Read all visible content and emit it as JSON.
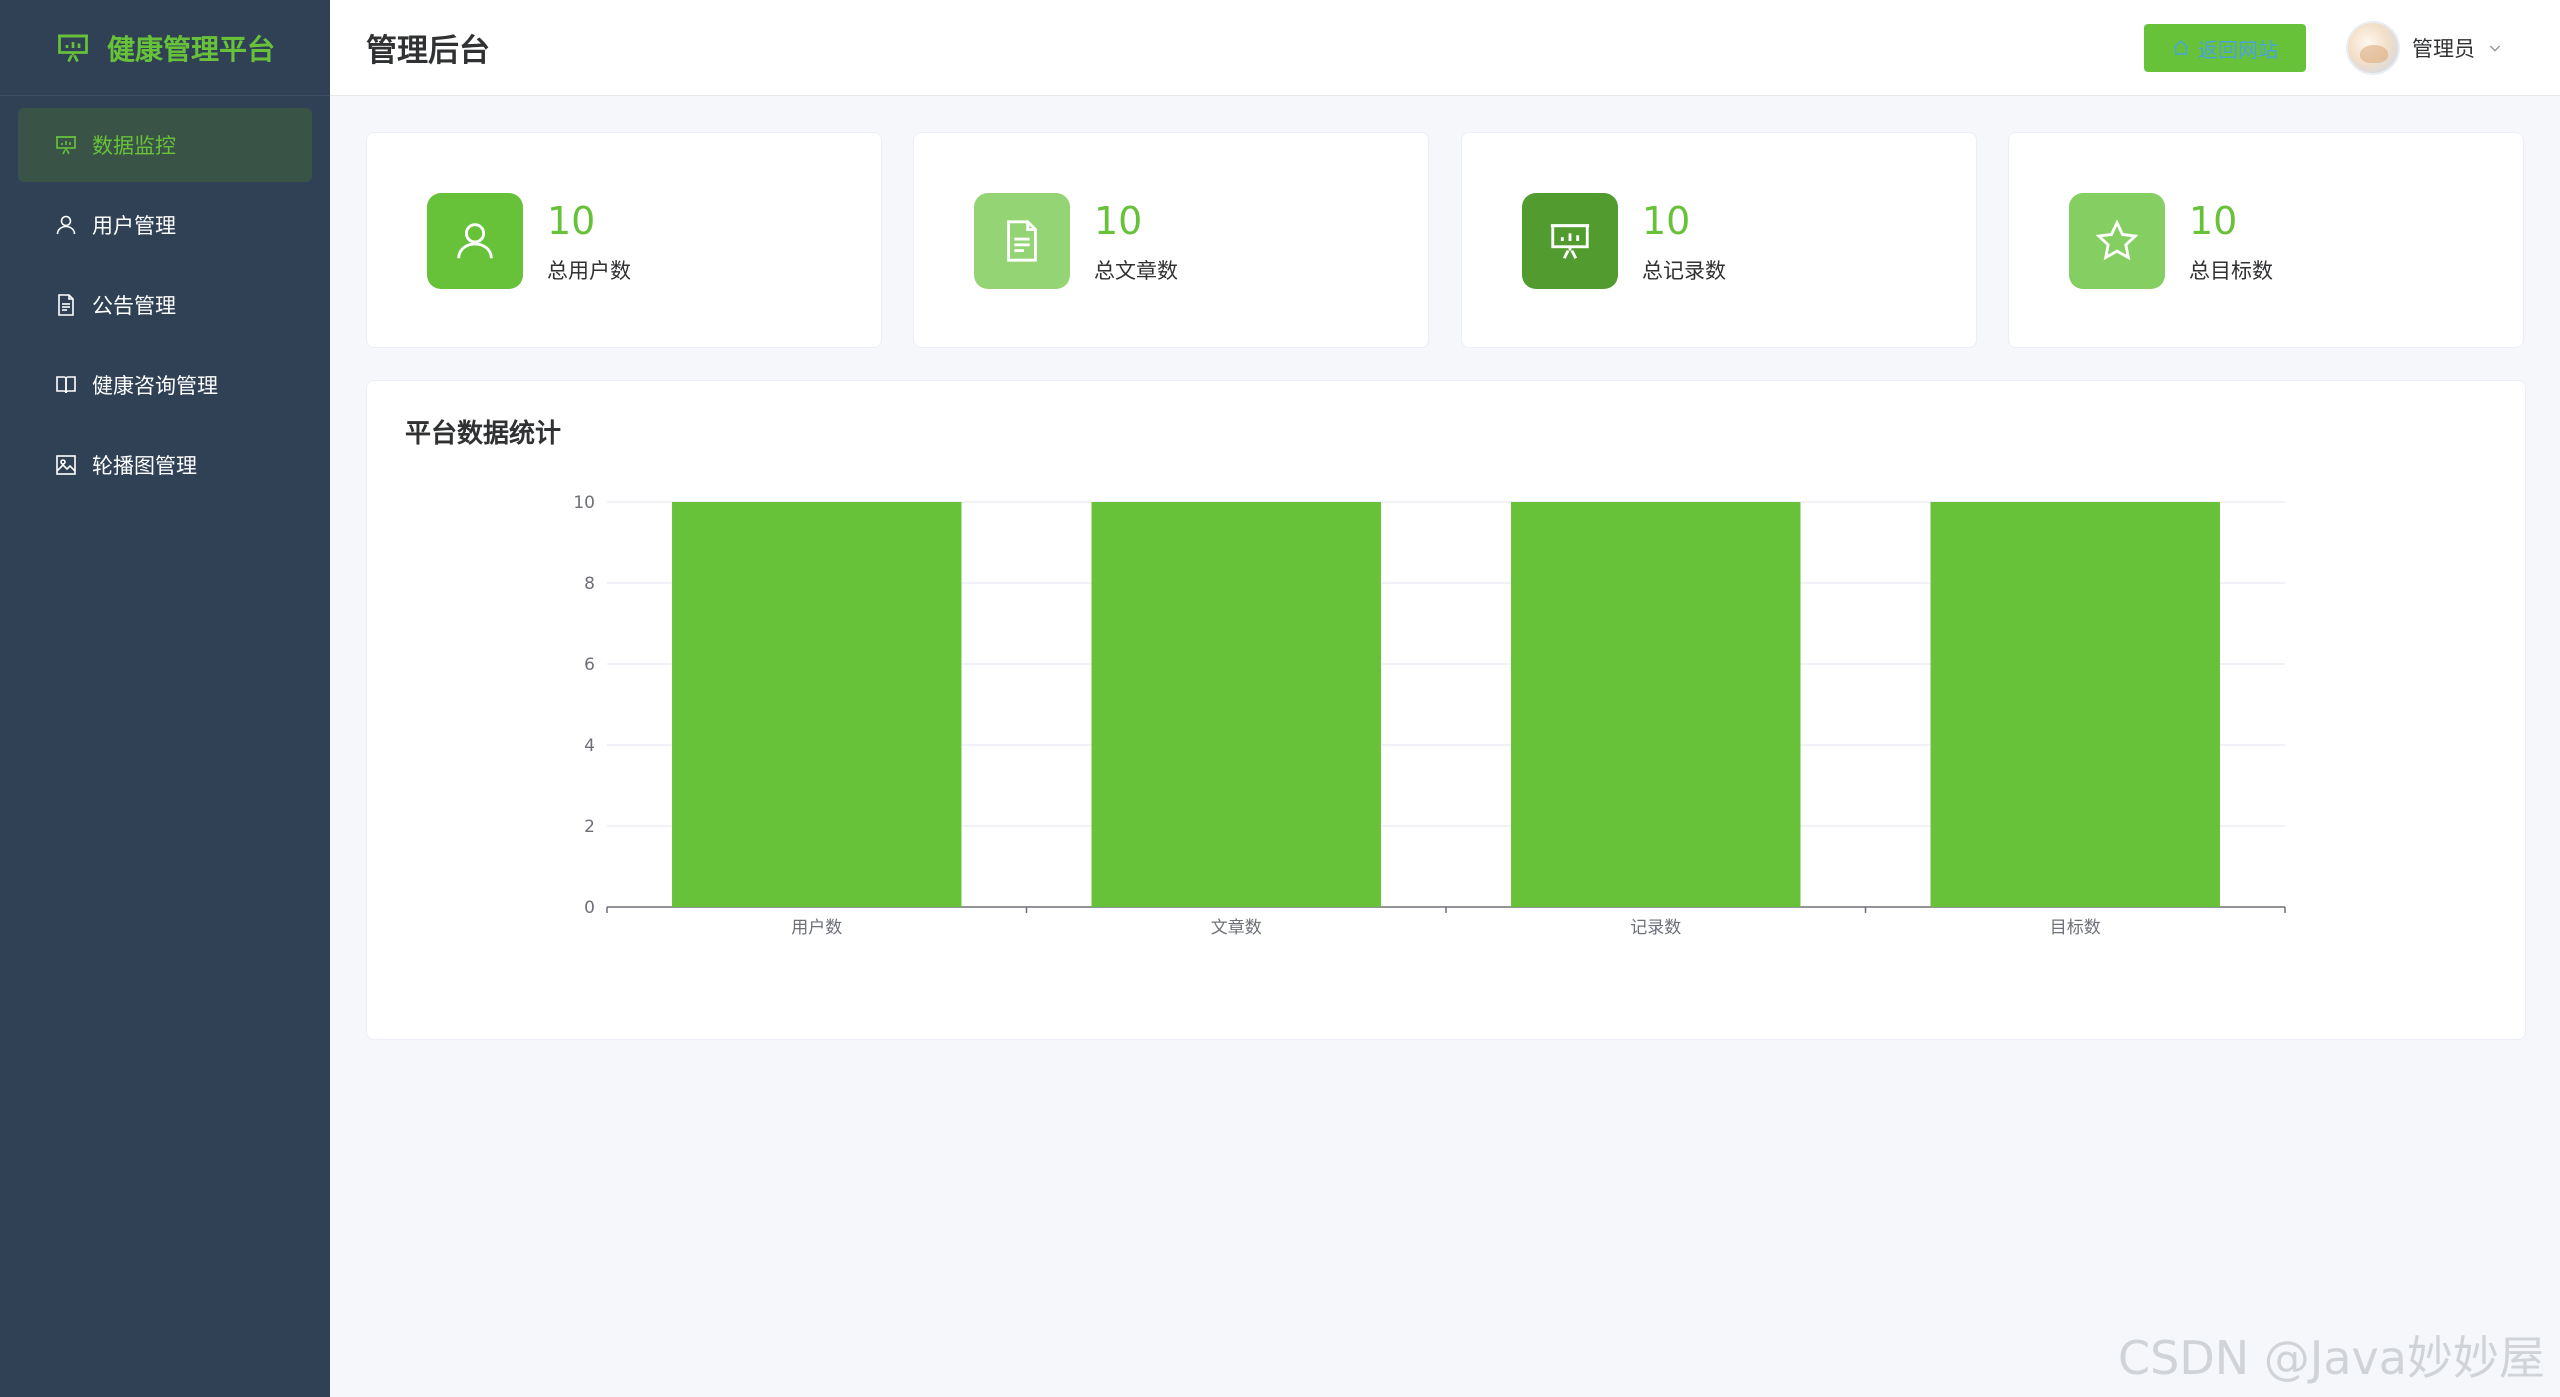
{
  "brand": {
    "title": "健康管理平台",
    "icon": "presentation-chart-icon"
  },
  "sidebar": {
    "items": [
      {
        "label": "数据监控",
        "icon": "presentation-chart-icon",
        "active": true
      },
      {
        "label": "用户管理",
        "icon": "user-icon",
        "active": false
      },
      {
        "label": "公告管理",
        "icon": "document-icon",
        "active": false
      },
      {
        "label": "健康咨询管理",
        "icon": "book-icon",
        "active": false
      },
      {
        "label": "轮播图管理",
        "icon": "picture-icon",
        "active": false
      }
    ]
  },
  "header": {
    "title": "管理后台",
    "back_label": "返回网站",
    "user_name": "管理员"
  },
  "stats": [
    {
      "value": "10",
      "label": "总用户数",
      "icon": "user-icon",
      "color": "#67c23a"
    },
    {
      "value": "10",
      "label": "总文章数",
      "icon": "document-icon",
      "color": "#95d475"
    },
    {
      "value": "10",
      "label": "总记录数",
      "icon": "presentation-chart-icon",
      "color": "#529b2e"
    },
    {
      "value": "10",
      "label": "总目标数",
      "icon": "star-icon",
      "color": "#85ce61"
    }
  ],
  "chart_panel": {
    "title": "平台数据统计"
  },
  "chart_data": {
    "type": "bar",
    "categories": [
      "用户数",
      "文章数",
      "记录数",
      "目标数"
    ],
    "values": [
      10,
      10,
      10,
      10
    ],
    "ylim": [
      0,
      10
    ],
    "yticks": [
      0,
      2,
      4,
      6,
      8,
      10
    ],
    "grid": true,
    "bar_color": "#67c23a"
  },
  "watermark": "CSDN @Java妙妙屋",
  "colors": {
    "accent": "#67c23a",
    "sidebar_bg": "#304156"
  }
}
